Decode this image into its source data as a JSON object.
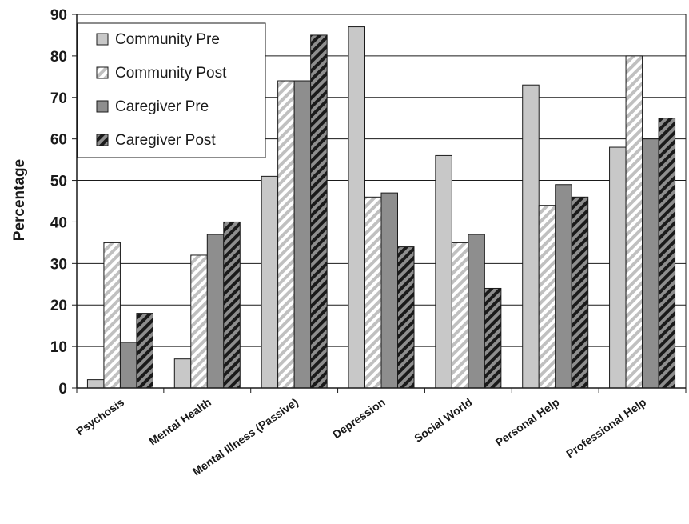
{
  "chart_data": {
    "type": "bar",
    "title": "",
    "xlabel": "",
    "ylabel": "Percentage",
    "ylim": [
      0,
      90
    ],
    "yticks": [
      0,
      10,
      20,
      30,
      40,
      50,
      60,
      70,
      80,
      90
    ],
    "grid": "horizontal major gridlines",
    "legend_position": "top-left",
    "categories": [
      "Psychosis",
      "Mental Health",
      "Mental Illness (Passive)",
      "Depression",
      "Social World",
      "Personal Help",
      "Professional Help"
    ],
    "series": [
      {
        "name": "Community Pre",
        "values": [
          2,
          7,
          51,
          87,
          56,
          73,
          58
        ],
        "fill": "#c8c8c8",
        "pattern": "solid"
      },
      {
        "name": "Community Post",
        "values": [
          35,
          32,
          74,
          46,
          35,
          44,
          80
        ],
        "fill": "#ffffff",
        "stripe": "#c0c0c0",
        "pattern": "diagonal-stripes"
      },
      {
        "name": "Caregiver Pre",
        "values": [
          11,
          37,
          74,
          47,
          37,
          49,
          60
        ],
        "fill": "#8e8e8e",
        "pattern": "solid"
      },
      {
        "name": "Caregiver Post",
        "values": [
          18,
          40,
          85,
          34,
          24,
          46,
          65
        ],
        "fill": "#8e8e8e",
        "stripe": "#1a1a1a",
        "pattern": "diagonal-stripes"
      }
    ]
  }
}
